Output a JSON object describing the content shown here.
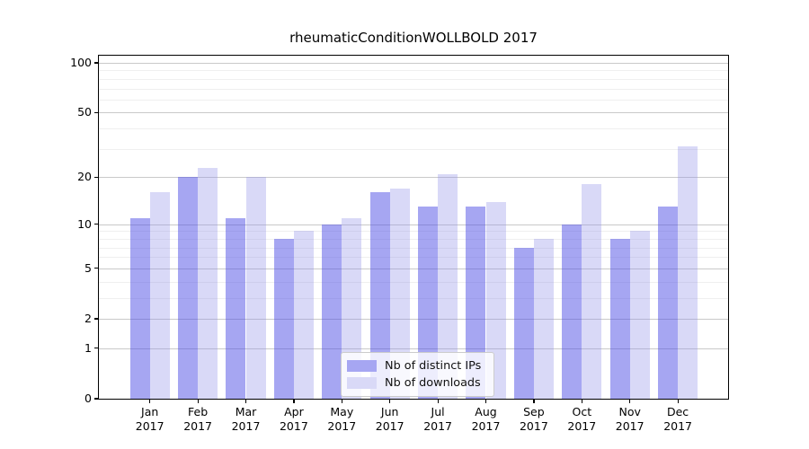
{
  "figure": {
    "title": "rheumaticConditionWOLLBOLD 2017"
  },
  "chart_data": {
    "type": "bar",
    "title": "rheumaticConditionWOLLBOLD 2017",
    "categories": [
      "Jan",
      "Feb",
      "Mar",
      "Apr",
      "May",
      "Jun",
      "Jul",
      "Aug",
      "Sep",
      "Oct",
      "Nov",
      "Dec"
    ],
    "x_year_label": "2017",
    "series": [
      {
        "name": "Nb of distinct IPs",
        "color": "#a6a6f2",
        "values": [
          11,
          20,
          11,
          8,
          10,
          16,
          13,
          13,
          7,
          10,
          8,
          13
        ]
      },
      {
        "name": "Nb of downloads",
        "color": "#d9d9f7",
        "values": [
          16,
          23,
          20,
          9,
          11,
          17,
          21,
          14,
          8,
          18,
          9,
          31
        ]
      }
    ],
    "xlabel": "",
    "ylabel": "",
    "yscale": "log10(1+x)",
    "ylim": [
      0,
      110
    ],
    "ytick_values": [
      0,
      1,
      2,
      5,
      10,
      20,
      50,
      100
    ],
    "ytick_labels": [
      "0",
      "1",
      "2",
      "5",
      "10",
      "20",
      "50",
      "100"
    ],
    "minor_grid_values": [
      3,
      4,
      6,
      7,
      8,
      9,
      30,
      40,
      60,
      70,
      80,
      90
    ],
    "grid": "horizontal",
    "legend_position": "inside-bottom-center"
  },
  "colors": {
    "ips_bar": "#a6a6f2",
    "downloads_bar": "#d9d9f7",
    "axis": "#000000",
    "major_grid": "#c9c9c9",
    "minor_grid": "#efefef",
    "background": "#ffffff"
  }
}
